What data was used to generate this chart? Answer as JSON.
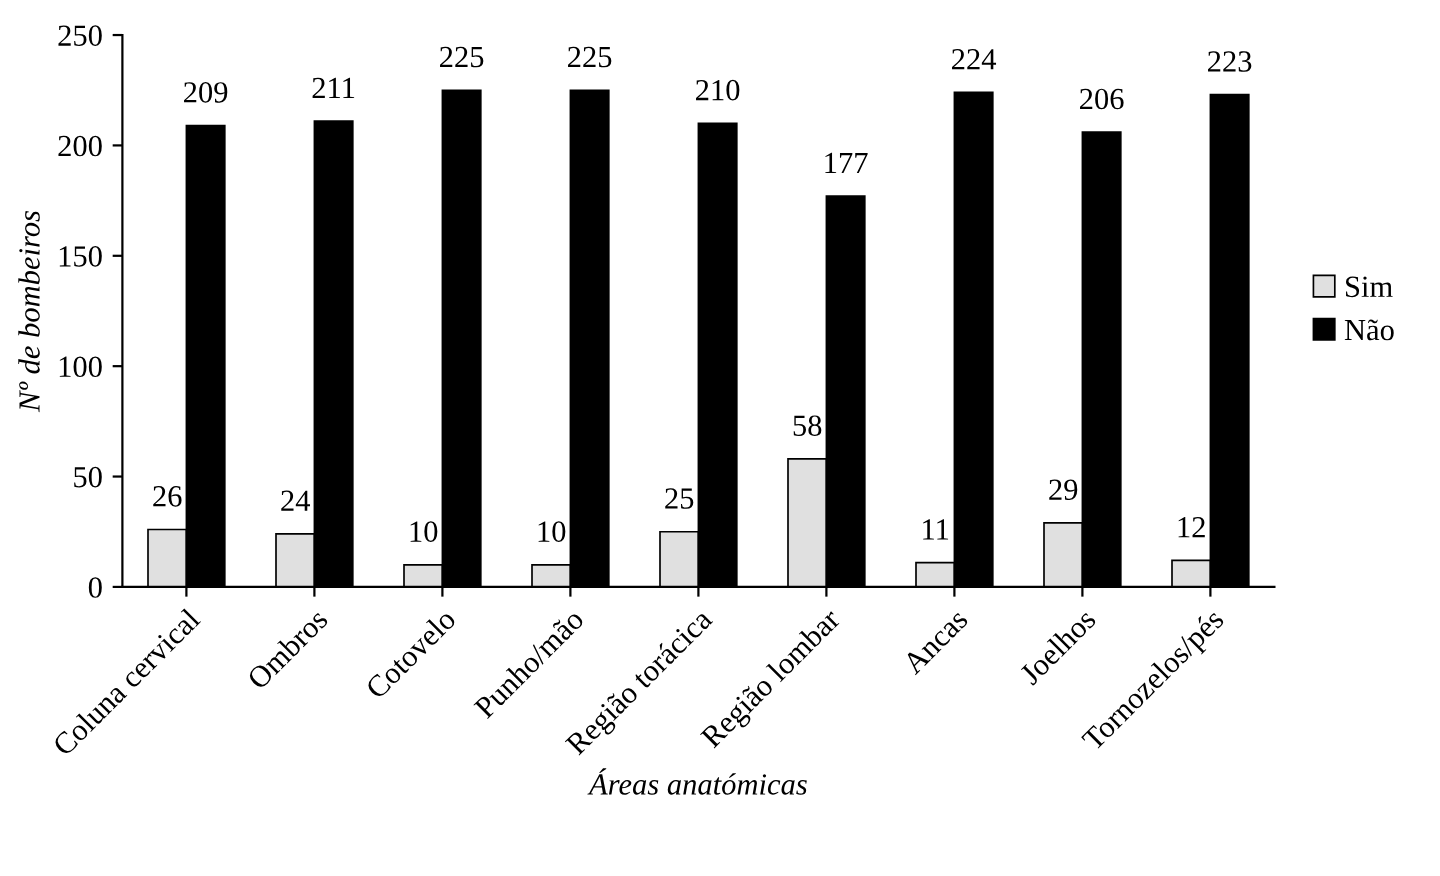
{
  "chart_data": {
    "type": "bar",
    "xlabel": "Áreas anatómicas",
    "ylabel": "Nº de bombeiros",
    "categories": [
      "Coluna cervical",
      "Ombros",
      "Cotovelo",
      "Punho/mão",
      "Região torácica",
      "Região lombar",
      "Ancas",
      "Joelhos",
      "Tornozelos/pés"
    ],
    "series": [
      {
        "name": "Sim",
        "color": "#e0e0e0",
        "values": [
          26,
          24,
          10,
          10,
          25,
          58,
          11,
          29,
          12
        ]
      },
      {
        "name": "Não",
        "color": "#000000",
        "values": [
          209,
          211,
          225,
          225,
          210,
          177,
          224,
          206,
          223
        ]
      }
    ],
    "ylim": [
      0,
      250
    ],
    "yticks": [
      0,
      50,
      100,
      150,
      200,
      250
    ],
    "grid": false,
    "legend": "right",
    "data_labels": true
  }
}
